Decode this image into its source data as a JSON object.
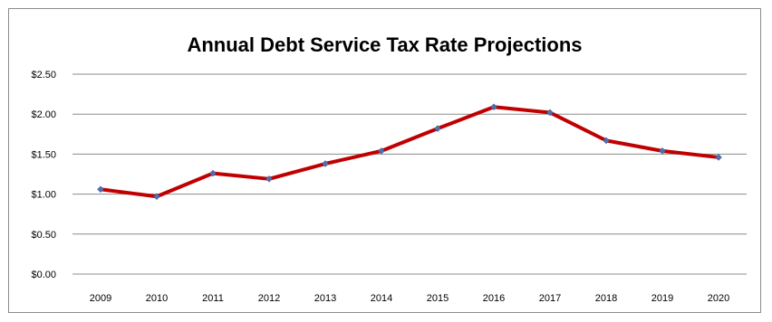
{
  "chart_data": {
    "type": "line",
    "title": "Annual Debt Service Tax Rate Projections",
    "xlabel": "",
    "ylabel": "",
    "categories": [
      "2009",
      "2010",
      "2011",
      "2012",
      "2013",
      "2014",
      "2015",
      "2016",
      "2017",
      "2018",
      "2019",
      "2020"
    ],
    "series": [
      {
        "values": [
          1.06,
          0.97,
          1.26,
          1.19,
          1.38,
          1.54,
          1.82,
          2.09,
          2.02,
          1.67,
          1.54,
          1.46
        ],
        "line_color": "#c00000",
        "marker_color": "#4f6fb0"
      }
    ],
    "ylim": [
      0,
      2.5
    ],
    "yticks": [
      {
        "value": 0,
        "label": "$0.00"
      },
      {
        "value": 0.5,
        "label": "$0.50"
      },
      {
        "value": 1,
        "label": "$1.00"
      },
      {
        "value": 1.5,
        "label": "$1.50"
      },
      {
        "value": 2,
        "label": "$2.00"
      },
      {
        "value": 2.5,
        "label": "$2.50"
      }
    ],
    "grid": true,
    "legend": "none"
  }
}
